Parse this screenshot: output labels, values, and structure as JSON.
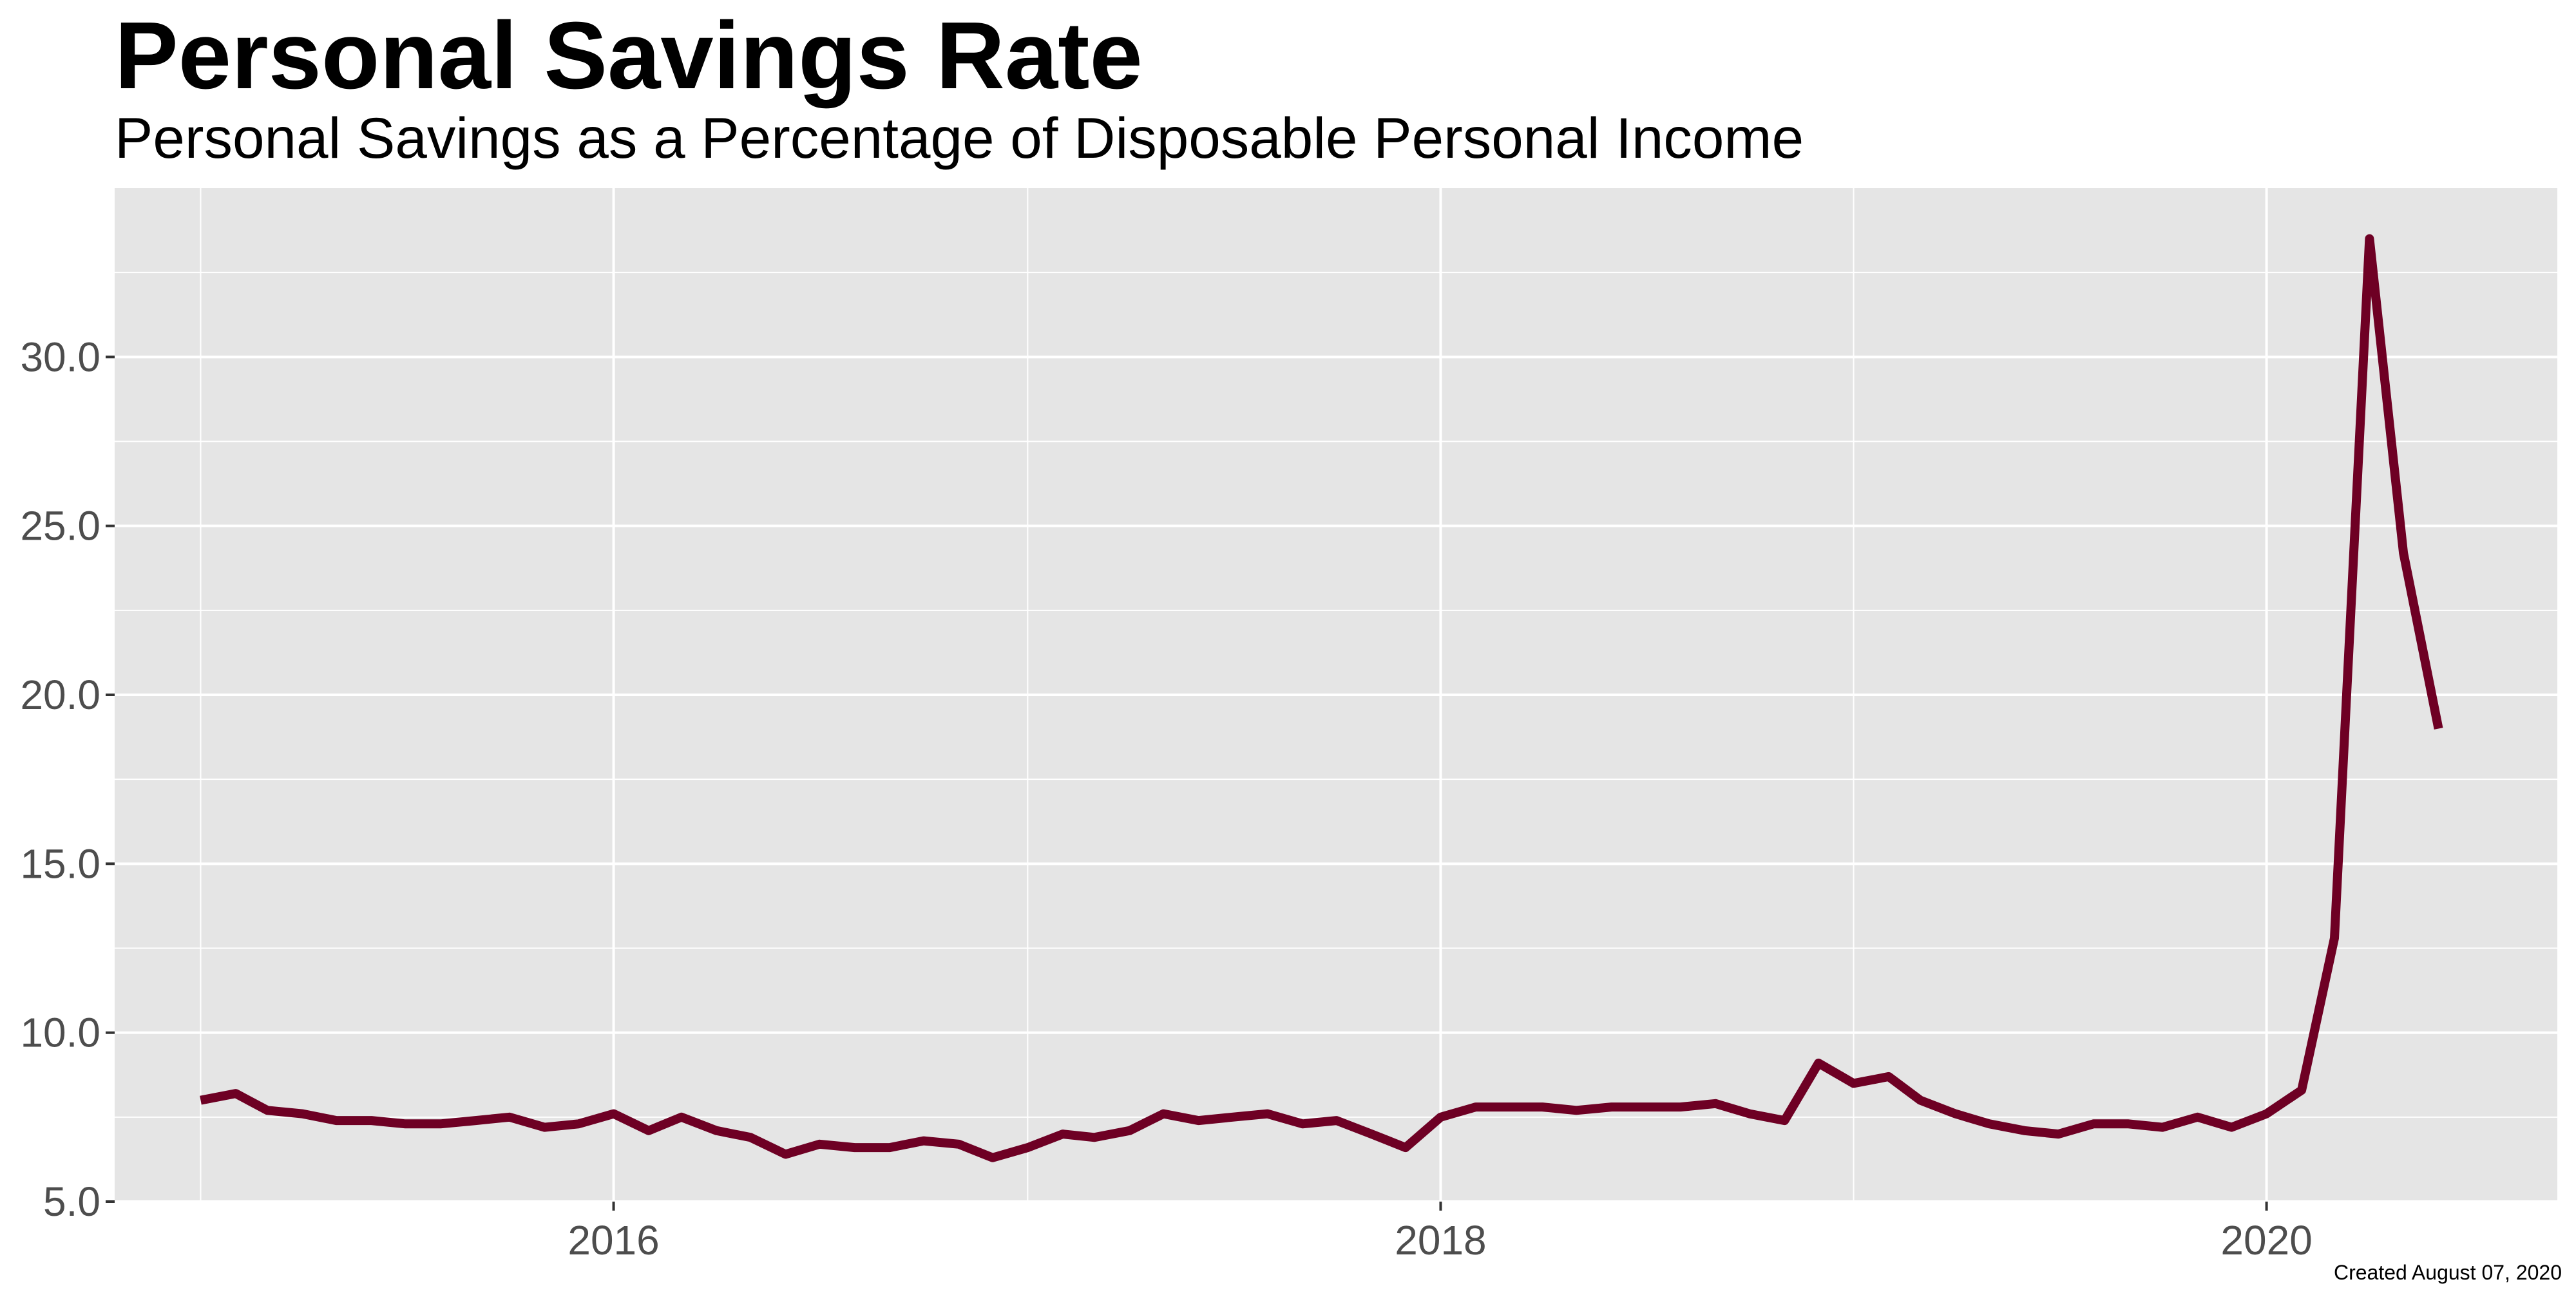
{
  "chart_data": {
    "type": "line",
    "title": "Personal Savings Rate",
    "subtitle": "Personal Savings as a Percentage of Disposable Personal Income",
    "caption": "Created August 07, 2020",
    "xlabel": "",
    "ylabel": "",
    "x_ticks": [
      "2016",
      "2018",
      "2020"
    ],
    "y_ticks": [
      "5.0",
      "10.0",
      "15.0",
      "20.0",
      "25.0",
      "30.0"
    ],
    "ylim": [
      5.0,
      35.0
    ],
    "xlim": [
      "2014-10-17",
      "2020-09-14"
    ],
    "grid": true,
    "legend": "none",
    "colors": {
      "line": "#6e0024",
      "panel": "#e5e5e5",
      "grid": "#ffffff",
      "tick_text": "#4d4d4d"
    },
    "series": [
      {
        "x": [
          "2015-01-01",
          "2015-02-01",
          "2015-03-01",
          "2015-04-01",
          "2015-05-01",
          "2015-06-01",
          "2015-07-01",
          "2015-08-01",
          "2015-09-01",
          "2015-10-01",
          "2015-11-01",
          "2015-12-01",
          "2016-01-01",
          "2016-02-01",
          "2016-03-01",
          "2016-04-01",
          "2016-05-01",
          "2016-06-01",
          "2016-07-01",
          "2016-08-01",
          "2016-09-01",
          "2016-10-01",
          "2016-11-01",
          "2016-12-01",
          "2017-01-01",
          "2017-02-01",
          "2017-03-01",
          "2017-04-01",
          "2017-05-01",
          "2017-06-01",
          "2017-07-01",
          "2017-08-01",
          "2017-09-01",
          "2017-10-01",
          "2017-11-01",
          "2017-12-01",
          "2018-01-01",
          "2018-02-01",
          "2018-03-01",
          "2018-04-01",
          "2018-05-01",
          "2018-06-01",
          "2018-07-01",
          "2018-08-01",
          "2018-09-01",
          "2018-10-01",
          "2018-11-01",
          "2018-12-01",
          "2019-01-01",
          "2019-02-01",
          "2019-03-01",
          "2019-04-01",
          "2019-05-01",
          "2019-06-01",
          "2019-07-01",
          "2019-08-01",
          "2019-09-01",
          "2019-10-01",
          "2019-11-01",
          "2019-12-01",
          "2020-01-01",
          "2020-02-01",
          "2020-03-01",
          "2020-04-01",
          "2020-05-01",
          "2020-06-01"
        ],
        "values": [
          8.0,
          8.2,
          7.7,
          7.6,
          7.4,
          7.4,
          7.3,
          7.3,
          7.4,
          7.5,
          7.2,
          7.3,
          7.6,
          7.1,
          7.5,
          7.1,
          6.9,
          6.4,
          6.7,
          6.6,
          6.6,
          6.8,
          6.7,
          6.3,
          6.6,
          7.0,
          6.9,
          7.1,
          7.6,
          7.4,
          7.5,
          7.6,
          7.3,
          7.4,
          7.0,
          6.6,
          7.5,
          7.8,
          7.8,
          7.8,
          7.7,
          7.8,
          7.8,
          7.8,
          7.9,
          7.6,
          7.4,
          9.1,
          8.5,
          8.7,
          8.0,
          7.6,
          7.3,
          7.1,
          7.0,
          7.3,
          7.3,
          7.2,
          7.5,
          7.2,
          7.6,
          8.3,
          12.8,
          33.5,
          24.2,
          19.0
        ]
      }
    ]
  }
}
